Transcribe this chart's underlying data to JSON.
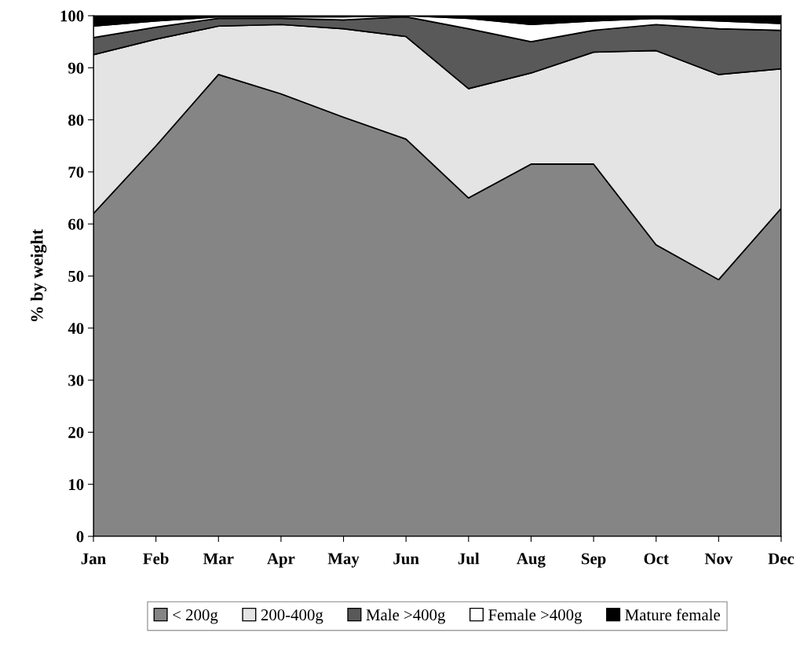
{
  "chart_data": {
    "type": "area",
    "stacked": true,
    "ylabel": "% by weight",
    "categories": [
      "Jan",
      "Feb",
      "Mar",
      "Apr",
      "May",
      "Jun",
      "Jul",
      "Aug",
      "Sep",
      "Oct",
      "Nov",
      "Dec"
    ],
    "series": [
      {
        "name": "< 200g",
        "color": "#858585",
        "values": [
          62,
          75,
          88.7,
          85,
          80.5,
          76.3,
          65,
          71.5,
          71.5,
          56,
          49.3,
          63
        ]
      },
      {
        "name": "200-400g",
        "color": "#e4e4e4",
        "values": [
          30.5,
          20.5,
          9.3,
          13.3,
          17,
          19.7,
          21,
          17.5,
          21.5,
          37.3,
          39.4,
          26.8
        ]
      },
      {
        "name": "Male >400g",
        "color": "#595959",
        "values": [
          3.3,
          2.3,
          1.5,
          1.2,
          1.7,
          3.8,
          11.5,
          6,
          4.2,
          5,
          8.8,
          7.4
        ]
      },
      {
        "name": "Female >400g",
        "color": "#ffffff",
        "values": [
          2.2,
          1.2,
          0.3,
          0.3,
          0.6,
          0.2,
          2,
          3.3,
          1.8,
          1.2,
          1.5,
          1.3
        ]
      },
      {
        "name": "Mature female",
        "color": "#000000",
        "values": [
          2,
          1,
          0.2,
          0.2,
          0.2,
          0,
          0.5,
          1.7,
          1,
          0.5,
          1,
          1.5
        ]
      }
    ],
    "ylim": [
      0,
      100
    ],
    "yticks": [
      0,
      10,
      20,
      30,
      40,
      50,
      60,
      70,
      80,
      90,
      100
    ],
    "grid": false,
    "legend": "bottom"
  }
}
